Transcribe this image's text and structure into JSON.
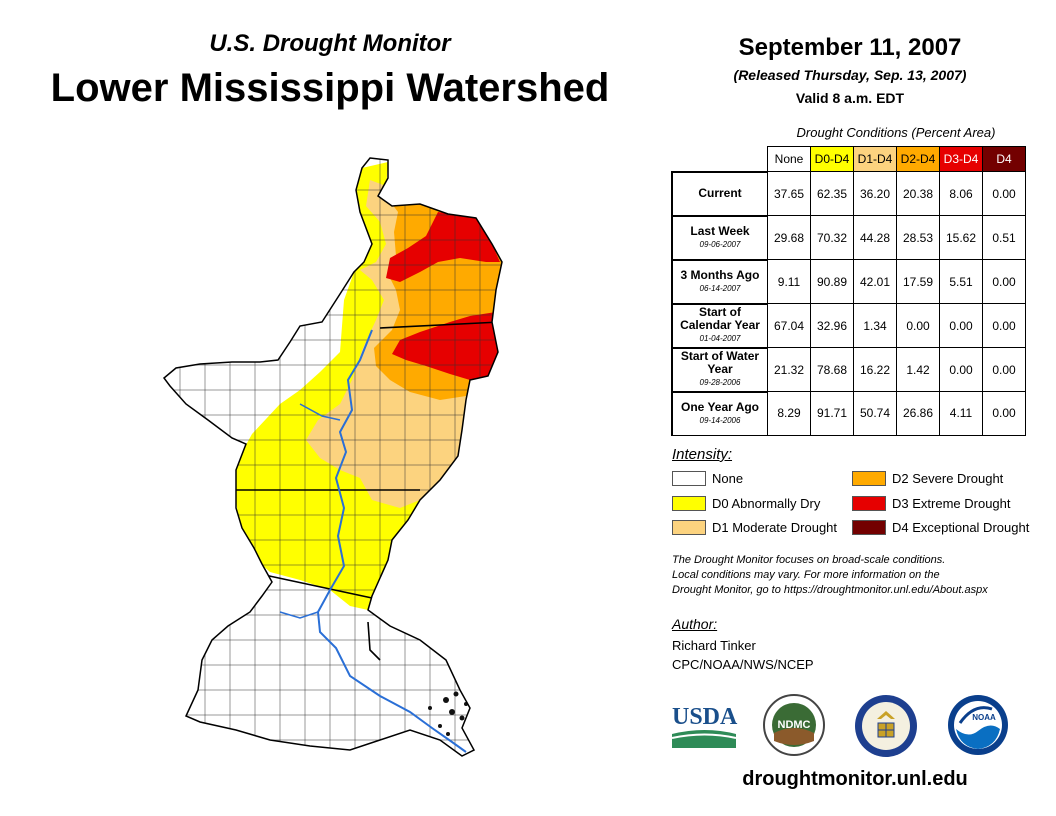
{
  "header": {
    "subtitle": "U.S. Drought Monitor",
    "title": "Lower Mississippi Watershed",
    "date": "September 11, 2007",
    "released": "(Released Thursday, Sep. 13, 2007)",
    "valid": "Valid 8 a.m. EDT"
  },
  "table": {
    "caption": "Drought Conditions (Percent Area)",
    "columns": [
      "None",
      "D0-D4",
      "D1-D4",
      "D2-D4",
      "D3-D4",
      "D4"
    ],
    "column_colors": [
      "#ffffff",
      "#ffff00",
      "#fcd37f",
      "#ffaa00",
      "#e60000",
      "#730000"
    ],
    "rows": [
      {
        "label": "Current",
        "date": "",
        "values": [
          "37.65",
          "62.35",
          "36.20",
          "20.38",
          "8.06",
          "0.00"
        ]
      },
      {
        "label": "Last Week",
        "date": "09-06-2007",
        "values": [
          "29.68",
          "70.32",
          "44.28",
          "28.53",
          "15.62",
          "0.51"
        ]
      },
      {
        "label": "3 Months Ago",
        "date": "06-14-2007",
        "values": [
          "9.11",
          "90.89",
          "42.01",
          "17.59",
          "5.51",
          "0.00"
        ]
      },
      {
        "label": "Start of Calendar Year",
        "date": "01-04-2007",
        "values": [
          "67.04",
          "32.96",
          "1.34",
          "0.00",
          "0.00",
          "0.00"
        ]
      },
      {
        "label": "Start of Water Year",
        "date": "09-28-2006",
        "values": [
          "21.32",
          "78.68",
          "16.22",
          "1.42",
          "0.00",
          "0.00"
        ]
      },
      {
        "label": "One Year Ago",
        "date": "09-14-2006",
        "values": [
          "8.29",
          "91.71",
          "50.74",
          "26.86",
          "4.11",
          "0.00"
        ]
      }
    ]
  },
  "legend": {
    "title": "Intensity:",
    "items": [
      {
        "label": "None",
        "color": "#ffffff"
      },
      {
        "label": "D0 Abnormally Dry",
        "color": "#ffff00"
      },
      {
        "label": "D1 Moderate Drought",
        "color": "#fcd37f"
      },
      {
        "label": "D2 Severe Drought",
        "color": "#ffaa00"
      },
      {
        "label": "D3 Extreme Drought",
        "color": "#e60000"
      },
      {
        "label": "D4 Exceptional Drought",
        "color": "#730000"
      }
    ]
  },
  "note": {
    "line1": "The Drought Monitor focuses on broad-scale conditions.",
    "line2": "Local conditions may vary. For more information on the",
    "line3": "Drought Monitor, go to https://droughtmonitor.unl.edu/About.aspx"
  },
  "author": {
    "label": "Author:",
    "name": "Richard Tinker",
    "org": "CPC/NOAA/NWS/NCEP"
  },
  "logos": {
    "usda": "USDA",
    "ndmc": "NDMC",
    "noaa": "NOAA"
  },
  "footer": {
    "url": "droughtmonitor.unl.edu"
  }
}
